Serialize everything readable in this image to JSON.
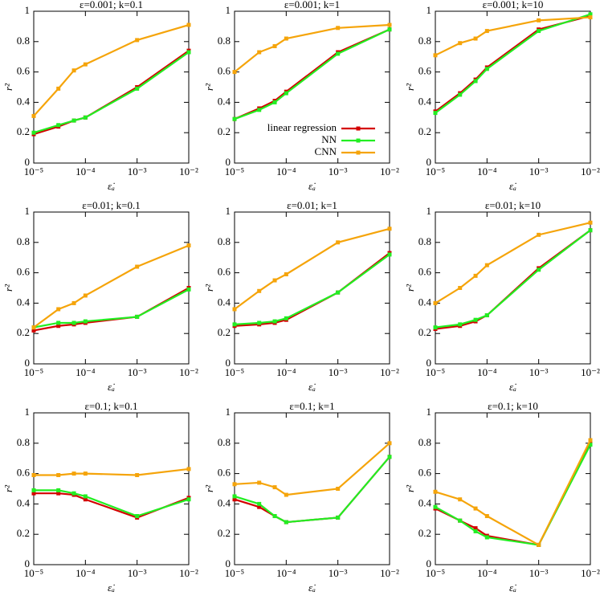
{
  "chart_data": [
    {
      "type": "line",
      "title": "ε=0.001; k=0.1",
      "x_label": "ε̇ₐ",
      "y_label": "r²",
      "xscale": "log",
      "x": [
        1e-05,
        3e-05,
        6e-05,
        0.0001,
        0.001,
        0.01
      ],
      "xlim": [
        1e-05,
        0.01
      ],
      "xticks": [
        {
          "value": 1e-05,
          "label": "10⁻⁵"
        },
        {
          "value": 0.0001,
          "label": "10⁻⁴"
        },
        {
          "value": 0.001,
          "label": "10⁻³"
        },
        {
          "value": 0.01,
          "label": "10⁻²"
        }
      ],
      "ylim": [
        0,
        1
      ],
      "yticks": [
        0,
        0.2,
        0.4,
        0.6,
        0.8,
        1
      ],
      "series": [
        {
          "name": "linear regression",
          "color": "#d40000",
          "values": [
            0.19,
            0.24,
            0.28,
            0.3,
            0.5,
            0.74
          ]
        },
        {
          "name": "NN",
          "color": "#22ee22",
          "values": [
            0.2,
            0.25,
            0.28,
            0.3,
            0.49,
            0.73
          ]
        },
        {
          "name": "CNN",
          "color": "#f5a40a",
          "values": [
            0.31,
            0.49,
            0.61,
            0.65,
            0.81,
            0.91
          ]
        }
      ]
    },
    {
      "type": "line",
      "title": "ε=0.001; k=1",
      "x_label": "ε̇ₐ",
      "y_label": "r²",
      "xscale": "log",
      "legend": "lower right",
      "x": [
        1e-05,
        3e-05,
        6e-05,
        0.0001,
        0.001,
        0.01
      ],
      "xlim": [
        1e-05,
        0.01
      ],
      "xticks": [
        {
          "value": 1e-05,
          "label": "10⁻⁵"
        },
        {
          "value": 0.0001,
          "label": "10⁻⁴"
        },
        {
          "value": 0.001,
          "label": "10⁻³"
        },
        {
          "value": 0.01,
          "label": "10⁻²"
        }
      ],
      "ylim": [
        0,
        1
      ],
      "yticks": [
        0,
        0.2,
        0.4,
        0.6,
        0.8,
        1
      ],
      "series": [
        {
          "name": "linear regression",
          "color": "#d40000",
          "values": [
            0.29,
            0.36,
            0.41,
            0.47,
            0.73,
            0.88
          ]
        },
        {
          "name": "NN",
          "color": "#22ee22",
          "values": [
            0.29,
            0.35,
            0.4,
            0.46,
            0.72,
            0.88
          ]
        },
        {
          "name": "CNN",
          "color": "#f5a40a",
          "values": [
            0.6,
            0.73,
            0.77,
            0.82,
            0.89,
            0.91
          ]
        }
      ]
    },
    {
      "type": "line",
      "title": "ε=0.001; k=10",
      "x_label": "ε̇ₐ",
      "y_label": "r²",
      "xscale": "log",
      "x": [
        1e-05,
        3e-05,
        6e-05,
        0.0001,
        0.001,
        0.01
      ],
      "xlim": [
        1e-05,
        0.01
      ],
      "xticks": [
        {
          "value": 1e-05,
          "label": "10⁻⁵"
        },
        {
          "value": 0.0001,
          "label": "10⁻⁴"
        },
        {
          "value": 0.001,
          "label": "10⁻³"
        },
        {
          "value": 0.01,
          "label": "10⁻²"
        }
      ],
      "ylim": [
        0,
        1
      ],
      "yticks": [
        0,
        0.2,
        0.4,
        0.6,
        0.8,
        1
      ],
      "series": [
        {
          "name": "linear regression",
          "color": "#d40000",
          "values": [
            0.34,
            0.46,
            0.55,
            0.63,
            0.88,
            0.97
          ]
        },
        {
          "name": "NN",
          "color": "#22ee22",
          "values": [
            0.33,
            0.45,
            0.54,
            0.62,
            0.87,
            0.98
          ]
        },
        {
          "name": "CNN",
          "color": "#f5a40a",
          "values": [
            0.71,
            0.79,
            0.82,
            0.87,
            0.94,
            0.96
          ]
        }
      ]
    },
    {
      "type": "line",
      "title": "ε=0.01; k=0.1",
      "x_label": "ε̇ₐ",
      "y_label": "r²",
      "xscale": "log",
      "x": [
        1e-05,
        3e-05,
        6e-05,
        0.0001,
        0.001,
        0.01
      ],
      "xlim": [
        1e-05,
        0.01
      ],
      "xticks": [
        {
          "value": 1e-05,
          "label": "10⁻⁵"
        },
        {
          "value": 0.0001,
          "label": "10⁻⁴"
        },
        {
          "value": 0.001,
          "label": "10⁻³"
        },
        {
          "value": 0.01,
          "label": "10⁻²"
        }
      ],
      "ylim": [
        0,
        1
      ],
      "yticks": [
        0,
        0.2,
        0.4,
        0.6,
        0.8,
        1
      ],
      "series": [
        {
          "name": "linear regression",
          "color": "#d40000",
          "values": [
            0.22,
            0.25,
            0.26,
            0.27,
            0.31,
            0.5
          ]
        },
        {
          "name": "NN",
          "color": "#22ee22",
          "values": [
            0.24,
            0.27,
            0.27,
            0.28,
            0.31,
            0.49
          ]
        },
        {
          "name": "CNN",
          "color": "#f5a40a",
          "values": [
            0.24,
            0.36,
            0.4,
            0.45,
            0.64,
            0.78
          ]
        }
      ]
    },
    {
      "type": "line",
      "title": "ε=0.01; k=1",
      "x_label": "ε̇ₐ",
      "y_label": "r²",
      "xscale": "log",
      "x": [
        1e-05,
        3e-05,
        6e-05,
        0.0001,
        0.001,
        0.01
      ],
      "xlim": [
        1e-05,
        0.01
      ],
      "xticks": [
        {
          "value": 1e-05,
          "label": "10⁻⁵"
        },
        {
          "value": 0.0001,
          "label": "10⁻⁴"
        },
        {
          "value": 0.001,
          "label": "10⁻³"
        },
        {
          "value": 0.01,
          "label": "10⁻²"
        }
      ],
      "ylim": [
        0,
        1
      ],
      "yticks": [
        0,
        0.2,
        0.4,
        0.6,
        0.8,
        1
      ],
      "series": [
        {
          "name": "linear regression",
          "color": "#d40000",
          "values": [
            0.25,
            0.26,
            0.27,
            0.29,
            0.47,
            0.73
          ]
        },
        {
          "name": "NN",
          "color": "#22ee22",
          "values": [
            0.26,
            0.27,
            0.28,
            0.3,
            0.47,
            0.72
          ]
        },
        {
          "name": "CNN",
          "color": "#f5a40a",
          "values": [
            0.36,
            0.48,
            0.55,
            0.59,
            0.8,
            0.89
          ]
        }
      ]
    },
    {
      "type": "line",
      "title": "ε=0.01; k=10",
      "x_label": "ε̇ₐ",
      "y_label": "r²",
      "xscale": "log",
      "x": [
        1e-05,
        3e-05,
        6e-05,
        0.0001,
        0.001,
        0.01
      ],
      "xlim": [
        1e-05,
        0.01
      ],
      "xticks": [
        {
          "value": 1e-05,
          "label": "10⁻⁵"
        },
        {
          "value": 0.0001,
          "label": "10⁻⁴"
        },
        {
          "value": 0.001,
          "label": "10⁻³"
        },
        {
          "value": 0.01,
          "label": "10⁻²"
        }
      ],
      "ylim": [
        0,
        1
      ],
      "yticks": [
        0,
        0.2,
        0.4,
        0.6,
        0.8,
        1
      ],
      "series": [
        {
          "name": "linear regression",
          "color": "#d40000",
          "values": [
            0.23,
            0.25,
            0.28,
            0.32,
            0.63,
            0.88
          ]
        },
        {
          "name": "NN",
          "color": "#22ee22",
          "values": [
            0.24,
            0.26,
            0.29,
            0.32,
            0.62,
            0.88
          ]
        },
        {
          "name": "CNN",
          "color": "#f5a40a",
          "values": [
            0.4,
            0.5,
            0.58,
            0.65,
            0.85,
            0.93
          ]
        }
      ]
    },
    {
      "type": "line",
      "title": "ε=0.1; k=0.1",
      "x_label": "ε̇ₐ",
      "y_label": "r²",
      "xscale": "log",
      "x": [
        1e-05,
        3e-05,
        6e-05,
        0.0001,
        0.001,
        0.01
      ],
      "xlim": [
        1e-05,
        0.01
      ],
      "xticks": [
        {
          "value": 1e-05,
          "label": "10⁻⁵"
        },
        {
          "value": 0.0001,
          "label": "10⁻⁴"
        },
        {
          "value": 0.001,
          "label": "10⁻³"
        },
        {
          "value": 0.01,
          "label": "10⁻²"
        }
      ],
      "ylim": [
        0,
        1
      ],
      "yticks": [
        0,
        0.2,
        0.4,
        0.6,
        0.8,
        1
      ],
      "series": [
        {
          "name": "linear regression",
          "color": "#d40000",
          "values": [
            0.47,
            0.47,
            0.46,
            0.43,
            0.31,
            0.44
          ]
        },
        {
          "name": "NN",
          "color": "#22ee22",
          "values": [
            0.49,
            0.49,
            0.47,
            0.45,
            0.32,
            0.43
          ]
        },
        {
          "name": "CNN",
          "color": "#f5a40a",
          "values": [
            0.59,
            0.59,
            0.6,
            0.6,
            0.59,
            0.63
          ]
        }
      ]
    },
    {
      "type": "line",
      "title": "ε=0.1; k=1",
      "x_label": "ε̇ₐ",
      "y_label": "r²",
      "xscale": "log",
      "x": [
        1e-05,
        3e-05,
        6e-05,
        0.0001,
        0.001,
        0.01
      ],
      "xlim": [
        1e-05,
        0.01
      ],
      "xticks": [
        {
          "value": 1e-05,
          "label": "10⁻⁵"
        },
        {
          "value": 0.0001,
          "label": "10⁻⁴"
        },
        {
          "value": 0.001,
          "label": "10⁻³"
        },
        {
          "value": 0.01,
          "label": "10⁻²"
        }
      ],
      "ylim": [
        0,
        1
      ],
      "yticks": [
        0,
        0.2,
        0.4,
        0.6,
        0.8,
        1
      ],
      "series": [
        {
          "name": "linear regression",
          "color": "#d40000",
          "values": [
            0.43,
            0.38,
            0.32,
            0.28,
            0.31,
            0.71
          ]
        },
        {
          "name": "NN",
          "color": "#22ee22",
          "values": [
            0.45,
            0.4,
            0.32,
            0.28,
            0.31,
            0.71
          ]
        },
        {
          "name": "CNN",
          "color": "#f5a40a",
          "values": [
            0.53,
            0.54,
            0.51,
            0.46,
            0.5,
            0.8
          ]
        }
      ]
    },
    {
      "type": "line",
      "title": "ε=0.1; k=10",
      "x_label": "ε̇ₐ",
      "y_label": "r²",
      "xscale": "log",
      "x": [
        1e-05,
        3e-05,
        6e-05,
        0.0001,
        0.001,
        0.01
      ],
      "xlim": [
        1e-05,
        0.01
      ],
      "xticks": [
        {
          "value": 1e-05,
          "label": "10⁻⁵"
        },
        {
          "value": 0.0001,
          "label": "10⁻⁴"
        },
        {
          "value": 0.001,
          "label": "10⁻³"
        },
        {
          "value": 0.01,
          "label": "10⁻²"
        }
      ],
      "ylim": [
        0,
        1
      ],
      "yticks": [
        0,
        0.2,
        0.4,
        0.6,
        0.8,
        1
      ],
      "series": [
        {
          "name": "linear regression",
          "color": "#d40000",
          "values": [
            0.37,
            0.29,
            0.24,
            0.19,
            0.13,
            0.8
          ]
        },
        {
          "name": "NN",
          "color": "#22ee22",
          "values": [
            0.38,
            0.29,
            0.22,
            0.18,
            0.13,
            0.79
          ]
        },
        {
          "name": "CNN",
          "color": "#f5a40a",
          "values": [
            0.48,
            0.43,
            0.37,
            0.32,
            0.13,
            0.82
          ]
        }
      ]
    }
  ]
}
